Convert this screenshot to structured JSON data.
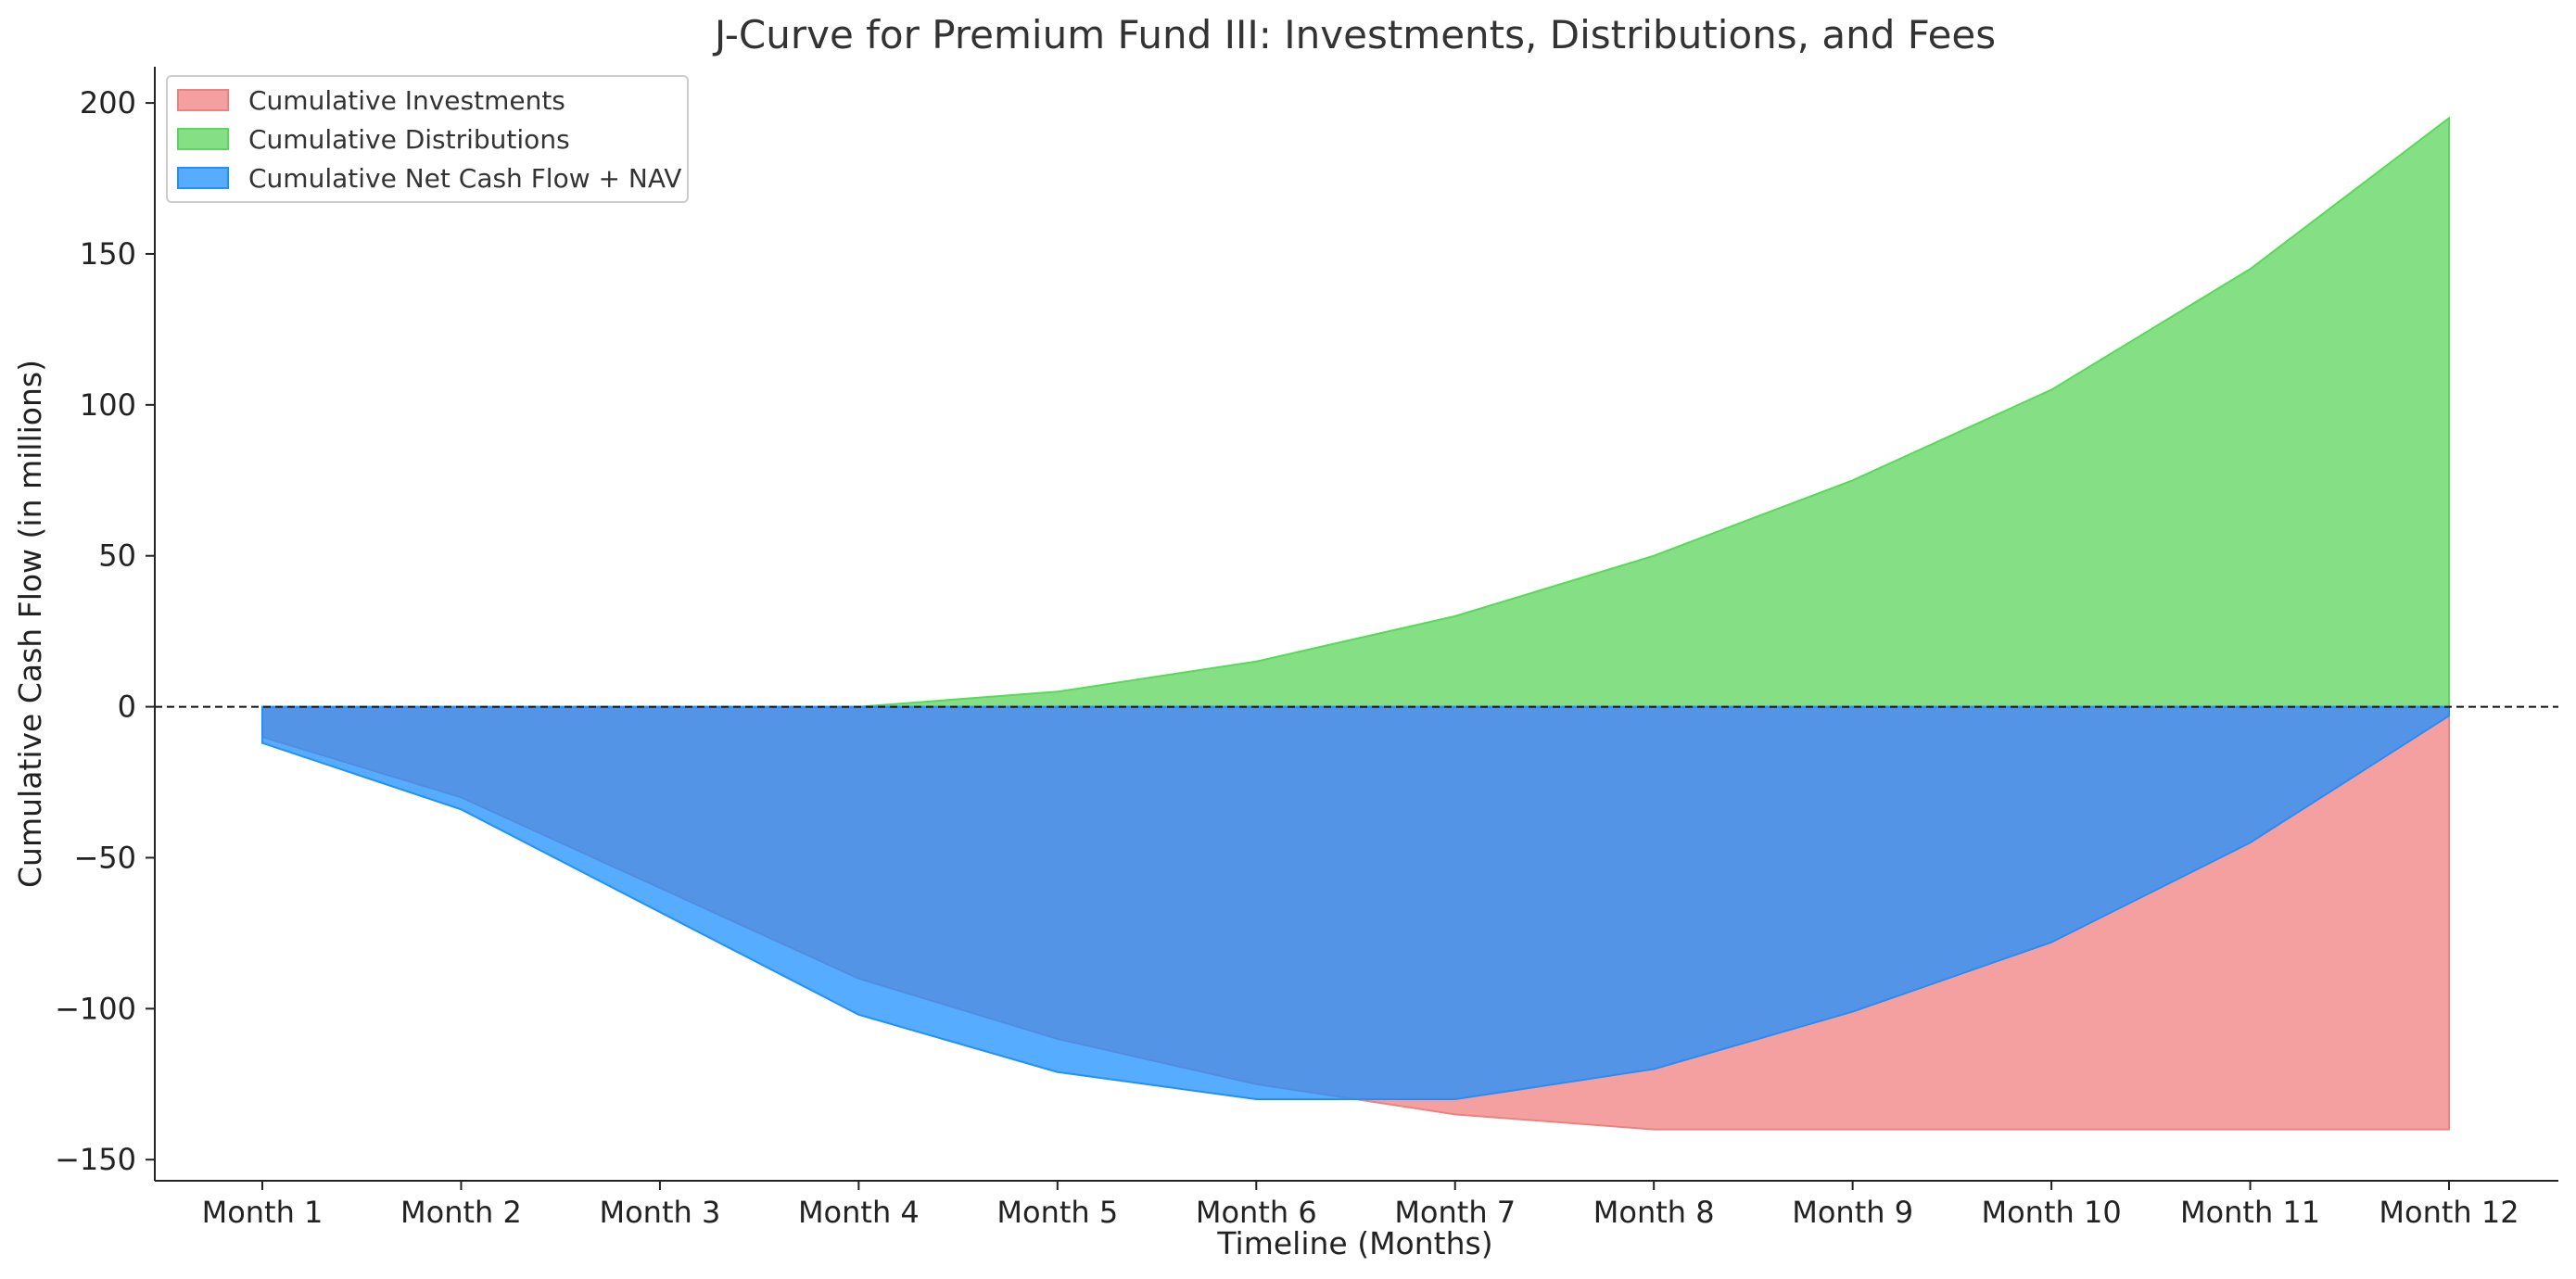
{
  "chart_data": {
    "type": "area",
    "title": "J-Curve for Premium Fund III: Investments, Distributions, and Fees",
    "xlabel": "Timeline (Months)",
    "ylabel": "Cumulative Cash Flow (in millions)",
    "categories": [
      "Month 1",
      "Month 2",
      "Month 3",
      "Month 4",
      "Month 5",
      "Month 6",
      "Month 7",
      "Month 8",
      "Month 9",
      "Month 10",
      "Month 11",
      "Month 12"
    ],
    "ylim": [
      -157,
      212
    ],
    "yticks": [
      -150,
      -100,
      -50,
      0,
      50,
      100,
      150,
      200
    ],
    "ytick_labels": [
      "−150",
      "−100",
      "−50",
      "0",
      "50",
      "100",
      "150",
      "200"
    ],
    "grid": false,
    "legend_position": "top-left",
    "zero_line": true,
    "series": [
      {
        "name": "Cumulative Investments",
        "color": "#f08080",
        "values": [
          -10,
          -30,
          -60,
          -90,
          -110,
          -125,
          -135,
          -140,
          -140,
          -140,
          -140,
          -140
        ]
      },
      {
        "name": "Cumulative Distributions",
        "color": "#5cd65c",
        "values": [
          0,
          0,
          0,
          0,
          5,
          15,
          30,
          50,
          75,
          105,
          145,
          195
        ]
      },
      {
        "name": "Cumulative Net Cash Flow + NAV",
        "color": "#1e90ff",
        "values": [
          -12,
          -34,
          -68,
          -102,
          -121,
          -130,
          -130,
          -120,
          -101,
          -78,
          -45,
          -3
        ]
      }
    ]
  }
}
